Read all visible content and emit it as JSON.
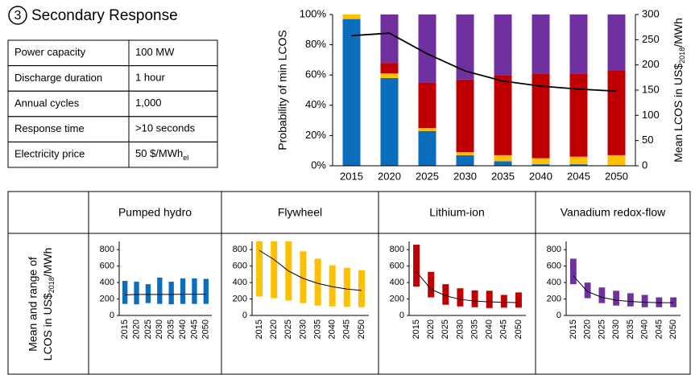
{
  "title_number": "3",
  "title": "Secondary Response",
  "table": {
    "rows": [
      {
        "label": "Power capacity",
        "value": "100 MW"
      },
      {
        "label": "Discharge duration",
        "value": "1 hour"
      },
      {
        "label": "Annual cycles",
        "value": "1,000"
      },
      {
        "label": "Response time",
        "value": ">10 seconds"
      },
      {
        "label": "Electricity price",
        "value": "50 $/MWh",
        "sub": "el"
      }
    ]
  },
  "panel_ylabel": {
    "line1": "Mean and range of",
    "line2": "LCOS in US$",
    "sub": "2018",
    "end": "/MWh"
  },
  "chart_data": [
    {
      "type": "stacked_bar",
      "categories": [
        "2015",
        "2020",
        "2025",
        "2030",
        "2035",
        "2040",
        "2045",
        "2050"
      ],
      "series": [
        {
          "color": "#0a6ebd",
          "values": [
            97,
            58,
            23,
            7,
            3,
            1,
            1,
            0
          ]
        },
        {
          "color": "#ffc000",
          "values": [
            3,
            3,
            2,
            2,
            4,
            4,
            5,
            7
          ]
        },
        {
          "color": "#c00000",
          "values": [
            0,
            7,
            30,
            48,
            53,
            56,
            55,
            56
          ]
        },
        {
          "color": "#7030a0",
          "values": [
            0,
            32,
            45,
            43,
            40,
            39,
            39,
            37
          ]
        },
        {
          "type": "line",
          "axis": "y2",
          "color": "#000000",
          "values": [
            258,
            263,
            222,
            188,
            168,
            158,
            152,
            148
          ]
        }
      ],
      "ylim": [
        0,
        100
      ],
      "yticks": [
        {
          "value": 0,
          "label": "0%"
        },
        {
          "value": 20,
          "label": "20%"
        },
        {
          "value": 40,
          "label": "40%"
        },
        {
          "value": 60,
          "label": "60%"
        },
        {
          "value": 80,
          "label": "80%"
        },
        {
          "value": 100,
          "label": "100%"
        }
      ],
      "ylabel": "Probability of min LCOS",
      "y2lim": [
        0,
        300
      ],
      "y2ticks": [
        0,
        50,
        100,
        150,
        200,
        250,
        300
      ],
      "y2label": {
        "text": "Mean LCOS in US$",
        "sub": "2018",
        "end": "/MWh"
      }
    },
    {
      "type": "range",
      "title": "Pumped hydro",
      "color": "#0a6ebd",
      "categories": [
        "2015",
        "2020",
        "2025",
        "2030",
        "2035",
        "2040",
        "2045",
        "2050"
      ],
      "low": [
        140,
        135,
        150,
        140,
        135,
        140,
        140,
        140
      ],
      "high": [
        420,
        410,
        380,
        460,
        410,
        450,
        450,
        445
      ],
      "mean": [
        250,
        255,
        255,
        255,
        255,
        258,
        258,
        258
      ],
      "ylim": [
        0,
        900
      ],
      "yticks": [
        0,
        200,
        400,
        600,
        800
      ]
    },
    {
      "type": "range",
      "title": "Flywheel",
      "color": "#ffc000",
      "categories": [
        "2015",
        "2020",
        "2025",
        "2030",
        "2035",
        "2040",
        "2045",
        "2050"
      ],
      "low": [
        230,
        210,
        180,
        150,
        120,
        110,
        105,
        100
      ],
      "high": [
        900,
        900,
        900,
        780,
        690,
        610,
        580,
        550
      ],
      "mean": [
        790,
        680,
        540,
        450,
        390,
        350,
        320,
        305
      ],
      "ylim": [
        0,
        900
      ],
      "yticks": [
        0,
        200,
        400,
        600,
        800
      ]
    },
    {
      "type": "range",
      "title": "Lithium-ion",
      "color": "#c00000",
      "categories": [
        "2015",
        "2020",
        "2025",
        "2030",
        "2035",
        "2040",
        "2045",
        "2050"
      ],
      "low": [
        350,
        220,
        130,
        110,
        100,
        90,
        95,
        95
      ],
      "high": [
        860,
        530,
        380,
        330,
        305,
        300,
        250,
        280
      ],
      "mean": [
        530,
        320,
        240,
        195,
        175,
        165,
        160,
        155
      ],
      "ylim": [
        0,
        900
      ],
      "yticks": [
        0,
        200,
        400,
        600,
        800
      ]
    },
    {
      "type": "range",
      "title": "Vanadium redox-flow",
      "color": "#7030a0",
      "categories": [
        "2015",
        "2020",
        "2025",
        "2030",
        "2035",
        "2040",
        "2045",
        "2050"
      ],
      "low": [
        380,
        210,
        150,
        120,
        110,
        100,
        100,
        100
      ],
      "high": [
        690,
        400,
        340,
        300,
        270,
        250,
        220,
        220
      ],
      "mean": [
        480,
        290,
        220,
        185,
        170,
        160,
        155,
        155
      ],
      "ylim": [
        0,
        900
      ],
      "yticks": [
        0,
        200,
        400,
        600,
        800
      ]
    }
  ]
}
